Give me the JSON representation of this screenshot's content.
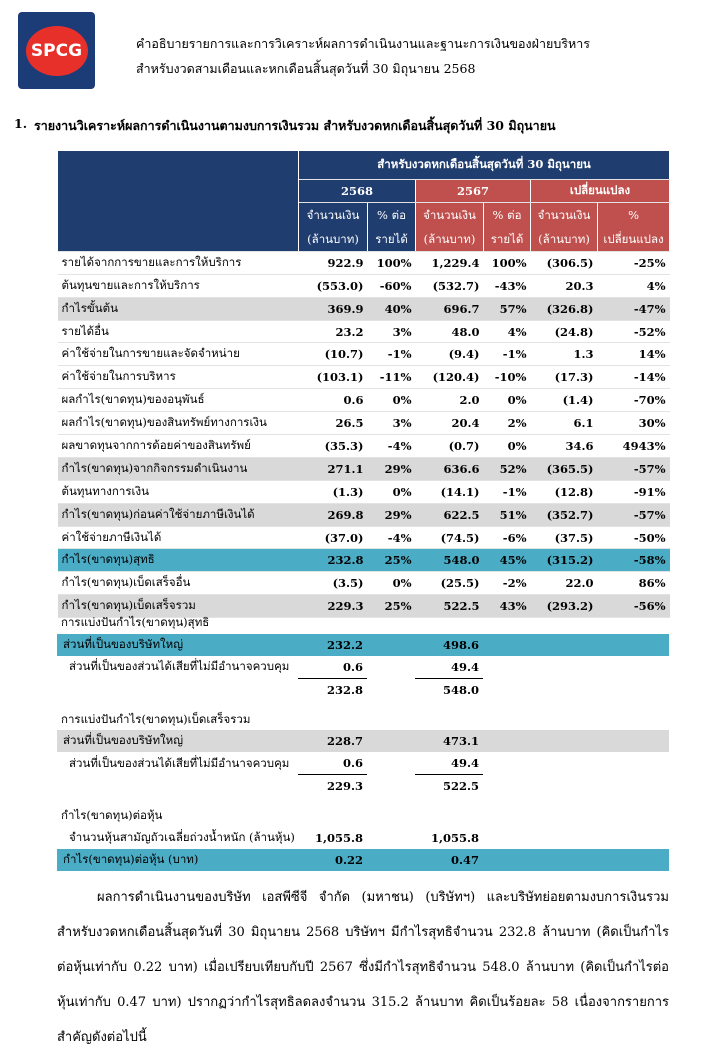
{
  "header": {
    "logo": "SPCG",
    "title": "คำอธิบายรายการและการวิเคราะห์ผลการดำเนินงานและฐานะการเงินของฝ่ายบริหาร",
    "subtitle": "สำหรับงวดสามเดือนและหกเดือนสิ้นสุดวันที่ 30 มิถุนายน 2568"
  },
  "section": {
    "number": "1.",
    "title": "รายงานวิเคราะห์ผลการดำเนินงานตามงบการเงินรวม สำหรับงวดหกเดือนสิ้นสุดวันที่ 30 มิถุนายน"
  },
  "table": {
    "caption": "สำหรับงวดหกเดือนสิ้นสุดวันที่ 30 มิถุนายน",
    "groups": [
      "2568",
      "2567",
      "เปลี่ยนแปลง"
    ],
    "columns": [
      [
        "จำนวนเงิน",
        "(ล้านบาท)"
      ],
      [
        "% ต่อ",
        "รายได้"
      ],
      [
        "จำนวนเงิน",
        "(ล้านบาท)"
      ],
      [
        "% ต่อ",
        "รายได้"
      ],
      [
        "จำนวนเงิน",
        "(ล้านบาท)"
      ],
      [
        "%",
        "เปลี่ยนแปลง"
      ]
    ],
    "rows": [
      [
        "รายได้จากการขายและการให้บริการ",
        "922.9",
        "100%",
        "1,229.4",
        "100%",
        "(306.5)",
        "-25%"
      ],
      [
        "ต้นทุนขายและการให้บริการ",
        "(553.0)",
        "-60%",
        "(532.7)",
        "-43%",
        "20.3",
        "4%"
      ],
      [
        "กำไรขั้นต้น",
        "369.9",
        "40%",
        "696.7",
        "57%",
        "(326.8)",
        "-47%"
      ],
      [
        "รายได้อื่น",
        "23.2",
        "3%",
        "48.0",
        "4%",
        "(24.8)",
        "-52%"
      ],
      [
        "ค่าใช้จ่ายในการขายและจัดจำหน่าย",
        "(10.7)",
        "-1%",
        "(9.4)",
        "-1%",
        "1.3",
        "14%"
      ],
      [
        "ค่าใช้จ่ายในการบริหาร",
        "(103.1)",
        "-11%",
        "(120.4)",
        "-10%",
        "(17.3)",
        "-14%"
      ],
      [
        "ผลกำไร(ขาดทุน)ของอนุพันธ์",
        "0.6",
        "0%",
        "2.0",
        "0%",
        "(1.4)",
        "-70%"
      ],
      [
        "ผลกำไร(ขาดทุน)ของสินทรัพย์ทางการเงิน",
        "26.5",
        "3%",
        "20.4",
        "2%",
        "6.1",
        "30%"
      ],
      [
        "ผลขาดทุนจากการด้อยค่าของสินทรัพย์",
        "(35.3)",
        "-4%",
        "(0.7)",
        "0%",
        "34.6",
        "4943%"
      ],
      [
        "กำไร(ขาดทุน)จากกิจกรรมดำเนินงาน",
        "271.1",
        "29%",
        "636.6",
        "52%",
        "(365.5)",
        "-57%"
      ],
      [
        "ต้นทุนทางการเงิน",
        "(1.3)",
        "0%",
        "(14.1)",
        "-1%",
        "(12.8)",
        "-91%"
      ],
      [
        "กำไร(ขาดทุน)ก่อนค่าใช้จ่ายภาษีเงินได้",
        "269.8",
        "29%",
        "622.5",
        "51%",
        "(352.7)",
        "-57%"
      ],
      [
        "ค่าใช้จ่ายภาษีเงินได้",
        "(37.0)",
        "-4%",
        "(74.5)",
        "-6%",
        "(37.5)",
        "-50%"
      ],
      [
        "กำไร(ขาดทุน)สุทธิ",
        "232.8",
        "25%",
        "548.0",
        "45%",
        "(315.2)",
        "-58%"
      ],
      [
        "กำไร(ขาดทุน)เบ็ดเสร็จอื่น",
        "(3.5)",
        "0%",
        "(25.5)",
        "-2%",
        "22.0",
        "86%"
      ],
      [
        "กำไร(ขาดทุน)เบ็ดเสร็จรวม",
        "229.3",
        "25%",
        "522.5",
        "43%",
        "(293.2)",
        "-56%"
      ]
    ]
  },
  "breakdowns": [
    {
      "title": "การแบ่งปันกำไร(ขาดทุน)สุทธิ",
      "rows": [
        {
          "label": "ส่วนที่เป็นของบริษัทใหญ่",
          "values": [
            "232.2",
            "498.6"
          ]
        },
        {
          "label": "ส่วนที่เป็นของส่วนได้เสียที่ไม่มีอำนาจควบคุม",
          "values": [
            "0.6",
            "49.4"
          ]
        },
        {
          "values": [
            "232.8",
            "548.0"
          ]
        }
      ]
    },
    {
      "title": "การแบ่งปันกำไร(ขาดทุน)เบ็ดเสร็จรวม",
      "rows": [
        {
          "label": "ส่วนที่เป็นของบริษัทใหญ่",
          "values": [
            "228.7",
            "473.1"
          ]
        },
        {
          "label": "ส่วนที่เป็นของส่วนได้เสียที่ไม่มีอำนาจควบคุม",
          "values": [
            "0.6",
            "49.4"
          ]
        },
        {
          "values": [
            "229.3",
            "522.5"
          ]
        }
      ]
    },
    {
      "title": "กำไร(ขาดทุน)ต่อหุ้น",
      "rows": [
        {
          "label": "จำนวนหุ้นสามัญถัวเฉลี่ยถ่วงน้ำหนัก (ล้านหุ้น)",
          "values": [
            "1,055.8",
            "1,055.8"
          ]
        },
        {
          "label": "กำไร(ขาดทุน)ต่อหุ้น (บาท)",
          "values": [
            "0.22",
            "0.47"
          ]
        }
      ]
    }
  ],
  "paragraph": "ผลการดำเนินงานของบริษัท เอสพีซีจี จำกัด (มหาชน) (บริษัทฯ) และบริษัทย่อยตามงบการเงินรวมสำหรับงวดหกเดือนสิ้นสุดวันที่ 30 มิถุนายน 2568 บริษัทฯ มีกำไรสุทธิจำนวน 232.8 ล้านบาท (คิดเป็นกำไรต่อหุ้นเท่ากับ 0.22 บาท) เมื่อเปรียบเทียบกับปี 2567 ซึ่งมีกำไรสุทธิจำนวน 548.0 ล้านบาท (คิดเป็นกำไรต่อหุ้นเท่ากับ 0.47 บาท) ปรากฏว่ากำไรสุทธิลดลงจำนวน 315.2 ล้านบาท คิดเป็นร้อยละ 58 เนื่องจากรายการสำคัญดังต่อไปนี้"
}
